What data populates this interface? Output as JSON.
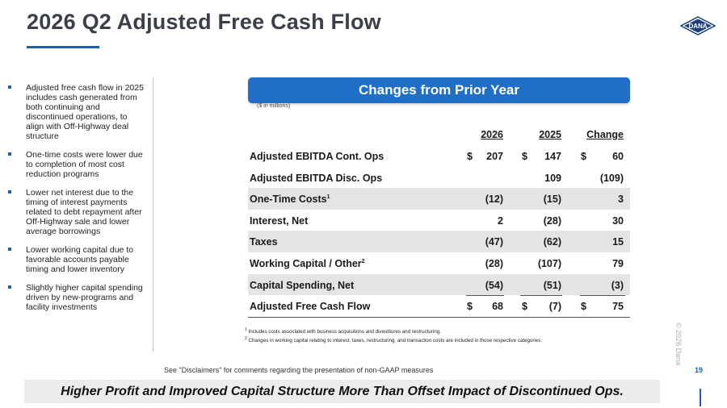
{
  "title": "2026 Q2 Adjusted Free Cash Flow",
  "logo_text": "DANA",
  "bullets": [
    "Adjusted free cash flow in 2025 includes cash generated from both continuing and discontinued operations, to align with Off-Highway deal structure",
    "One-time costs were lower due to completion of most cost reduction programs",
    "Lower net interest due to the timing of interest payments related to debt repayment after Off-Highway sale and lower average borrowings",
    "Lower working capital due to favorable accounts payable timing and lower inventory",
    "Slightly higher capital spending driven by new-programs and facility investments"
  ],
  "banner": "Changes from Prior Year",
  "units": "($ in millions)",
  "table": {
    "headers": [
      "2026",
      "2025",
      "Change"
    ],
    "rows": [
      {
        "label": "Adjusted EBITDA Cont. Ops",
        "sup": "",
        "v1": "207",
        "v2": "147",
        "v3": "60",
        "d1": "$",
        "d2": "$",
        "d3": "$"
      },
      {
        "label": "Adjusted EBITDA Disc. Ops",
        "sup": "",
        "v1": "",
        "v2": "109",
        "v3": "(109)",
        "d1": "",
        "d2": "",
        "d3": ""
      },
      {
        "label": "One-Time Costs",
        "sup": "1",
        "v1": "(12)",
        "v2": "(15)",
        "v3": "3",
        "d1": "",
        "d2": "",
        "d3": ""
      },
      {
        "label": "Interest, Net",
        "sup": "",
        "v1": "2",
        "v2": "(28)",
        "v3": "30",
        "d1": "",
        "d2": "",
        "d3": ""
      },
      {
        "label": "Taxes",
        "sup": "",
        "v1": "(47)",
        "v2": "(62)",
        "v3": "15",
        "d1": "",
        "d2": "",
        "d3": ""
      },
      {
        "label": "Working Capital / Other",
        "sup": "2",
        "v1": "(28)",
        "v2": "(107)",
        "v3": "79",
        "d1": "",
        "d2": "",
        "d3": ""
      },
      {
        "label": "Capital Spending, Net",
        "sup": "",
        "v1": "(54)",
        "v2": "(51)",
        "v3": "(3)",
        "d1": "",
        "d2": "",
        "d3": ""
      },
      {
        "label": "Adjusted Free Cash Flow",
        "sup": "",
        "v1": "68",
        "v2": "(7)",
        "v3": "75",
        "d1": "$",
        "d2": "$",
        "d3": "$"
      }
    ]
  },
  "footnotes": [
    {
      "num": "1",
      "text": "Includes costs associated with business acquisitions and divestitures and restructuring."
    },
    {
      "num": "2",
      "text": "Changes in working capital relating to interest, taxes, restructuring, and transaction costs are included in those respective categories."
    }
  ],
  "copyright": "© 2026 Dana",
  "disclaimer": "See \"Disclaimers\" for comments regarding the presentation of non-GAAP measures",
  "page_number": "19",
  "callout": "Higher Profit and Improved Capital Structure More Than Offset Impact of Discontinued Ops.",
  "colors": {
    "accent": "#1f5fae",
    "banner": "#1f6fc8",
    "shade": "#e4e4e4"
  }
}
